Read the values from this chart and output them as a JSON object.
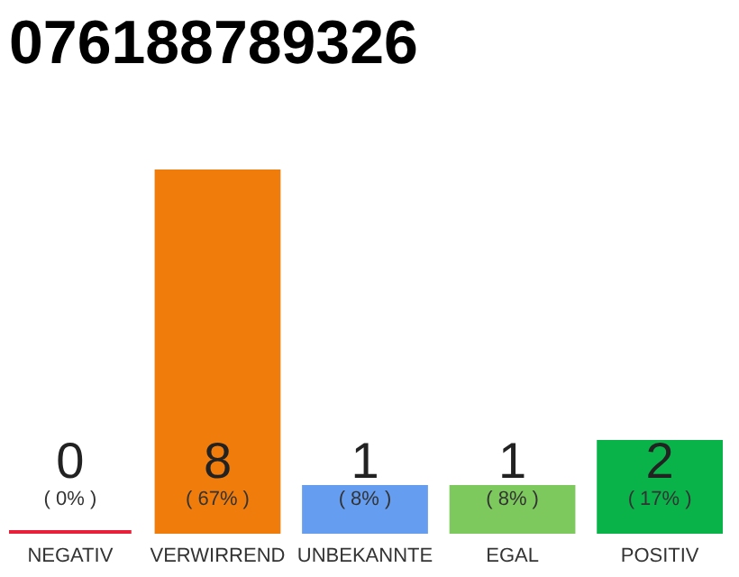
{
  "chart_data": {
    "type": "bar",
    "title": "076188789326",
    "categories": [
      "NEGATIV",
      "VERWIRREND",
      "UNBEKANNTE",
      "EGAL",
      "POSITIV"
    ],
    "values": [
      0,
      8,
      1,
      1,
      2
    ],
    "colors": [
      "#e8203a",
      "#f07c0c",
      "#659ef0",
      "#7dc95e",
      "#0ab34a"
    ],
    "data_labels": true,
    "annotations": [
      "( 0% )",
      "( 67% )",
      "( 8% )",
      "( 8% )",
      "( 17% )"
    ]
  }
}
